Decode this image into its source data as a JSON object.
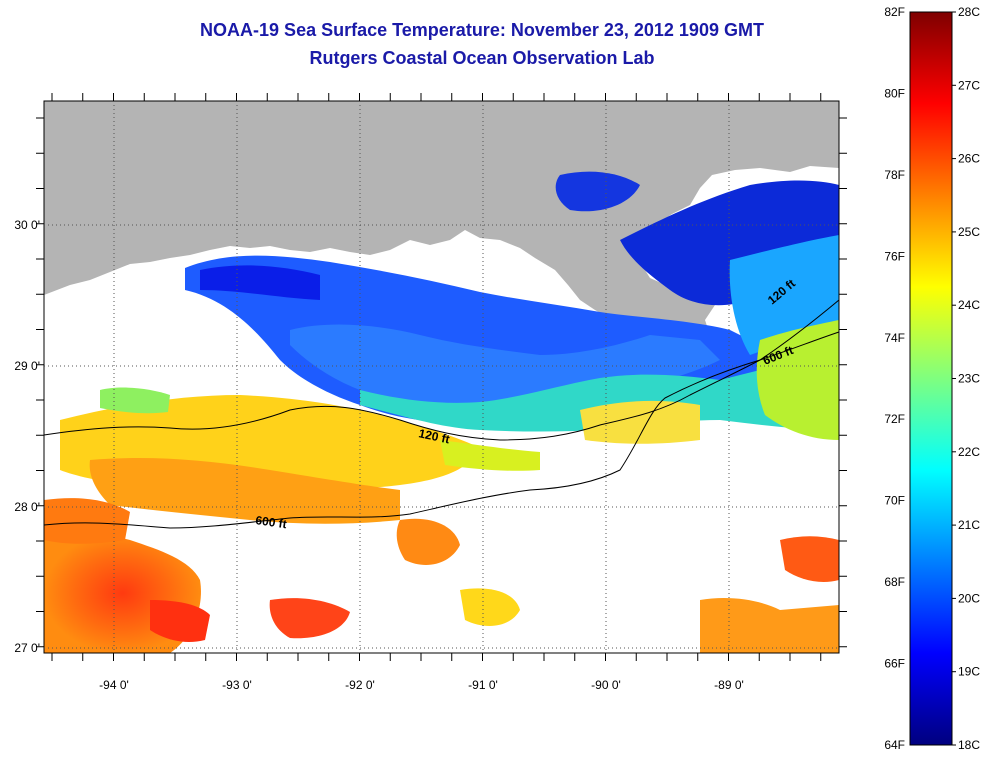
{
  "title": "NOAA-19 Sea Surface Temperature:  November 23, 2012 1909 GMT",
  "subtitle": "Rutgers Coastal Ocean Observation Lab",
  "map": {
    "lon_labels": [
      "-94 0'",
      "-93 0'",
      "-92 0'",
      "-91 0'",
      "-90 0'",
      "-89 0'"
    ],
    "lat_labels": [
      "30 0'",
      "29 0'",
      "28 0'",
      "27 0'"
    ],
    "contour_labels": [
      "120 ft",
      "600 ft",
      "120 ft",
      "600 ft"
    ],
    "colors": {
      "land": "#b4b4b4",
      "cloud": "#ffffff"
    }
  },
  "colorbar": {
    "fahrenheit_labels": [
      "82F",
      "80F",
      "78F",
      "76F",
      "74F",
      "72F",
      "70F",
      "68F",
      "66F",
      "64F"
    ],
    "celsius_labels": [
      "28C",
      "27C",
      "26C",
      "25C",
      "24C",
      "23C",
      "22C",
      "21C",
      "20C",
      "19C",
      "18C"
    ],
    "colormap": "jet"
  }
}
